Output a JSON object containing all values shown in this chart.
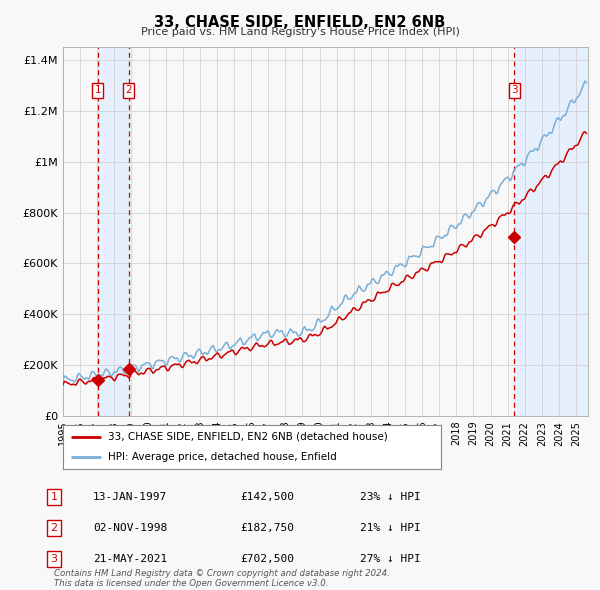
{
  "title": "33, CHASE SIDE, ENFIELD, EN2 6NB",
  "subtitle": "Price paid vs. HM Land Registry's House Price Index (HPI)",
  "background_color": "#f8f8f8",
  "plot_bg_color": "#f8f8f8",
  "grid_color": "#cccccc",
  "ylim": [
    0,
    1450000
  ],
  "yticks": [
    0,
    200000,
    400000,
    600000,
    800000,
    1000000,
    1200000,
    1400000
  ],
  "ytick_labels": [
    "£0",
    "£200K",
    "£400K",
    "£600K",
    "£800K",
    "£1M",
    "£1.2M",
    "£1.4M"
  ],
  "xlim_start": 1995.0,
  "xlim_end": 2025.7,
  "red_line_color": "#cc0000",
  "blue_line_color": "#7aaed6",
  "marker_color": "#cc0000",
  "vline_color": "#cc0000",
  "shade_color": "#ddeeff",
  "transactions": [
    {
      "label": "1",
      "date": 1997.04,
      "price": 142500
    },
    {
      "label": "2",
      "date": 1998.84,
      "price": 182750
    },
    {
      "label": "3",
      "date": 2021.38,
      "price": 702500
    }
  ],
  "table_rows": [
    {
      "num": "1",
      "date": "13-JAN-1997",
      "price": "£142,500",
      "hpi": "23% ↓ HPI"
    },
    {
      "num": "2",
      "date": "02-NOV-1998",
      "price": "£182,750",
      "hpi": "21% ↓ HPI"
    },
    {
      "num": "3",
      "date": "21-MAY-2021",
      "price": "£702,500",
      "hpi": "27% ↓ HPI"
    }
  ],
  "legend_red": "33, CHASE SIDE, ENFIELD, EN2 6NB (detached house)",
  "legend_blue": "HPI: Average price, detached house, Enfield",
  "footer": "Contains HM Land Registry data © Crown copyright and database right 2024.\nThis data is licensed under the Open Government Licence v3.0."
}
